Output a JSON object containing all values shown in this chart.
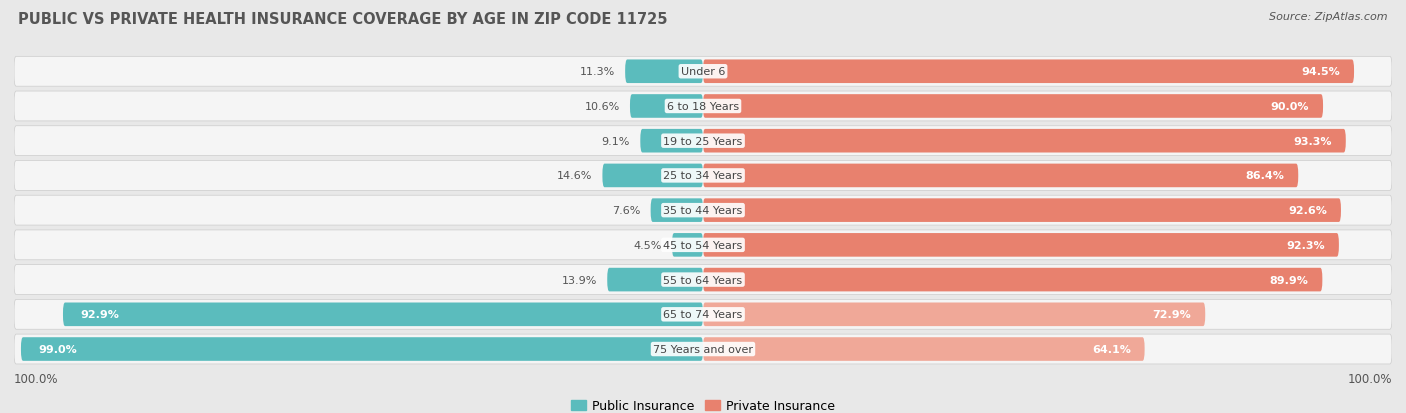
{
  "title": "PUBLIC VS PRIVATE HEALTH INSURANCE COVERAGE BY AGE IN ZIP CODE 11725",
  "source": "Source: ZipAtlas.com",
  "categories": [
    "Under 6",
    "6 to 18 Years",
    "19 to 25 Years",
    "25 to 34 Years",
    "35 to 44 Years",
    "45 to 54 Years",
    "55 to 64 Years",
    "65 to 74 Years",
    "75 Years and over"
  ],
  "public_values": [
    11.3,
    10.6,
    9.1,
    14.6,
    7.6,
    4.5,
    13.9,
    92.9,
    99.0
  ],
  "private_values": [
    94.5,
    90.0,
    93.3,
    86.4,
    92.6,
    92.3,
    89.9,
    72.9,
    64.1
  ],
  "public_color": "#5bbcbd",
  "private_color": "#e8816e",
  "private_color_light": "#f0a898",
  "bg_color": "#e8e8e8",
  "row_bg_color": "#f5f5f5",
  "title_color": "#555555",
  "label_color": "#444444",
  "value_color_inside": "#ffffff",
  "value_color_outside": "#555555",
  "axis_label": "100.0%",
  "legend_public": "Public Insurance",
  "legend_private": "Private Insurance",
  "title_fontsize": 10.5,
  "source_fontsize": 8,
  "bar_label_fontsize": 8,
  "value_fontsize": 8,
  "legend_fontsize": 9,
  "axis_fontsize": 8.5,
  "private_light_threshold": 80
}
